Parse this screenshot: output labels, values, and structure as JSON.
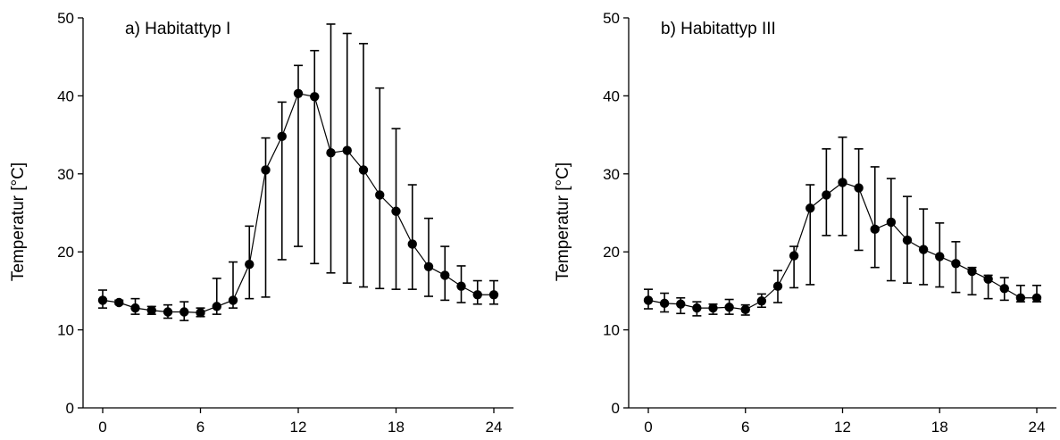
{
  "chart_data": [
    {
      "type": "line",
      "title": "a) Habitattyp I",
      "ylabel": "Temperatur [°C]",
      "xlabel": "",
      "xlim": [
        0,
        24
      ],
      "ylim": [
        0,
        50
      ],
      "xticks": [
        0,
        6,
        12,
        18,
        24
      ],
      "yticks": [
        0,
        10,
        20,
        30,
        40,
        50
      ],
      "grid": false,
      "legend": "none",
      "color": "#000000",
      "series": [
        {
          "x": [
            0,
            1,
            2,
            3,
            4,
            5,
            6,
            7,
            8,
            9,
            10,
            11,
            12,
            13,
            14,
            15,
            16,
            17,
            18,
            19,
            20,
            21,
            22,
            23,
            24
          ],
          "y": [
            13.8,
            13.5,
            12.8,
            12.5,
            12.3,
            12.3,
            12.2,
            13.0,
            13.8,
            18.4,
            30.5,
            34.8,
            40.3,
            39.9,
            32.7,
            33.0,
            30.5,
            27.3,
            25.2,
            21.0,
            18.1,
            17.0,
            15.6,
            14.5,
            14.5
          ],
          "y_lower": [
            12.8,
            13.3,
            12.0,
            12.0,
            11.5,
            11.2,
            11.7,
            12.0,
            12.8,
            14.0,
            14.2,
            19.0,
            20.7,
            18.5,
            17.3,
            16.0,
            15.5,
            15.3,
            15.2,
            15.2,
            14.3,
            13.8,
            13.5,
            13.3,
            13.3
          ],
          "y_upper": [
            15.1,
            13.8,
            14.0,
            13.0,
            13.2,
            13.6,
            12.8,
            16.6,
            18.7,
            23.3,
            34.6,
            39.2,
            43.9,
            45.8,
            49.2,
            48.0,
            46.7,
            41.0,
            35.8,
            28.6,
            24.3,
            20.7,
            18.2,
            16.3,
            16.3
          ]
        }
      ]
    },
    {
      "type": "line",
      "title": "b) Habitattyp III",
      "ylabel": "Temperatur [°C]",
      "xlabel": "",
      "xlim": [
        0,
        24
      ],
      "ylim": [
        0,
        50
      ],
      "xticks": [
        0,
        6,
        12,
        18,
        24
      ],
      "yticks": [
        0,
        10,
        20,
        30,
        40,
        50
      ],
      "grid": false,
      "legend": "none",
      "color": "#000000",
      "series": [
        {
          "x": [
            0,
            1,
            2,
            3,
            4,
            5,
            6,
            7,
            8,
            9,
            10,
            11,
            12,
            13,
            14,
            15,
            16,
            17,
            18,
            19,
            20,
            21,
            22,
            23,
            24
          ],
          "y": [
            13.8,
            13.4,
            13.3,
            12.8,
            12.8,
            12.9,
            12.6,
            13.7,
            15.6,
            19.5,
            25.6,
            27.3,
            28.9,
            28.2,
            22.9,
            23.8,
            21.5,
            20.3,
            19.4,
            18.5,
            17.5,
            16.5,
            15.3,
            14.1,
            14.1
          ],
          "y_lower": [
            12.7,
            12.3,
            12.1,
            11.8,
            12.0,
            12.0,
            11.9,
            12.9,
            13.5,
            15.4,
            15.8,
            22.1,
            22.1,
            20.2,
            18.0,
            16.3,
            16.0,
            15.8,
            15.5,
            14.8,
            14.5,
            14.0,
            13.8,
            13.6,
            13.6
          ],
          "y_upper": [
            15.2,
            14.7,
            14.1,
            13.6,
            13.3,
            13.9,
            13.2,
            14.6,
            17.6,
            20.7,
            28.6,
            33.2,
            34.7,
            33.2,
            30.9,
            29.4,
            27.1,
            25.5,
            23.7,
            21.3,
            18.0,
            17.0,
            16.7,
            15.7,
            15.7
          ]
        }
      ]
    }
  ]
}
